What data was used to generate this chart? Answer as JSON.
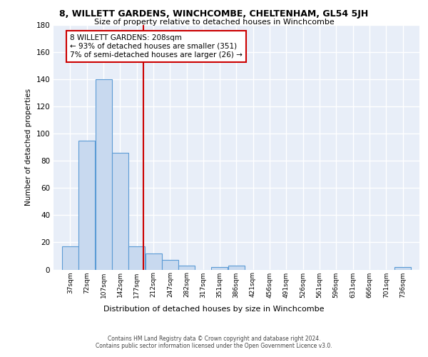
{
  "title": "8, WILLETT GARDENS, WINCHCOMBE, CHELTENHAM, GL54 5JH",
  "subtitle": "Size of property relative to detached houses in Winchcombe",
  "xlabel": "Distribution of detached houses by size in Winchcombe",
  "ylabel": "Number of detached properties",
  "bin_edges": [
    37,
    72,
    107,
    142,
    177,
    212,
    247,
    282,
    317,
    351,
    386,
    421,
    456,
    491,
    526,
    561,
    596,
    631,
    666,
    701,
    736
  ],
  "bin_width": 35,
  "bar_heights": [
    17,
    95,
    140,
    86,
    17,
    12,
    7,
    3,
    0,
    2,
    3,
    0,
    0,
    0,
    0,
    0,
    0,
    0,
    0,
    0,
    2
  ],
  "bar_color": "#c8d9ef",
  "bar_edgecolor": "#5b9bd5",
  "property_size": 208,
  "redline_color": "#cc0000",
  "annotation_text_line1": "8 WILLETT GARDENS: 208sqm",
  "annotation_text_line2": "← 93% of detached houses are smaller (351)",
  "annotation_text_line3": "7% of semi-detached houses are larger (26) →",
  "annotation_box_color": "#ffffff",
  "annotation_box_edgecolor": "#cc0000",
  "ylim": [
    0,
    180
  ],
  "yticks": [
    0,
    20,
    40,
    60,
    80,
    100,
    120,
    140,
    160,
    180
  ],
  "background_color": "#e8eef8",
  "grid_color": "#ffffff",
  "footer_line1": "Contains HM Land Registry data © Crown copyright and database right 2024.",
  "footer_line2": "Contains public sector information licensed under the Open Government Licence v3.0."
}
